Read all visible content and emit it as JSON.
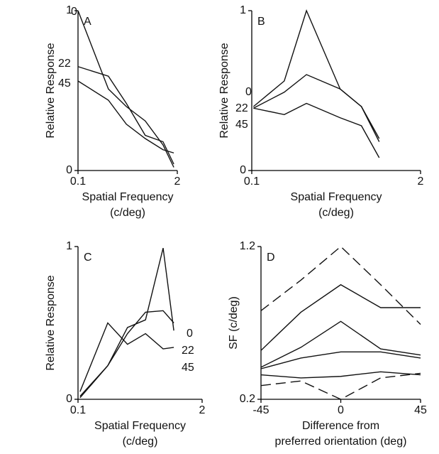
{
  "chart_data": [
    {
      "type": "line",
      "label": "A",
      "xscale": "log",
      "xlim": [
        0.1,
        2
      ],
      "xticks": [
        0.1,
        2
      ],
      "ylim": [
        0,
        1
      ],
      "yticks": [
        0,
        1
      ],
      "ylabel": "Relative Response",
      "xlabel": [
        "Spatial Frequency",
        "(c/deg)"
      ],
      "x": [
        0.1,
        0.25,
        0.43,
        0.76,
        1.3,
        1.8
      ],
      "series": [
        {
          "name": "0",
          "color": "#111111",
          "values": [
            1.0,
            0.51,
            0.4,
            0.31,
            0.16,
            0.02
          ]
        },
        {
          "name": "22",
          "color": "#111111",
          "values": [
            0.65,
            0.59,
            0.42,
            0.22,
            0.18,
            0.04
          ]
        },
        {
          "name": "45",
          "color": "#111111",
          "values": [
            0.56,
            0.44,
            0.29,
            0.2,
            0.13,
            0.11
          ]
        }
      ]
    },
    {
      "type": "line",
      "label": "B",
      "xscale": "log",
      "xlim": [
        0.1,
        2
      ],
      "xticks": [
        0.1,
        2
      ],
      "ylim": [
        0,
        1
      ],
      "yticks": [
        0,
        1
      ],
      "ylabel": "Relative Response",
      "xlabel": [
        "Spatial Frequency",
        "(c/deg)"
      ],
      "x": [
        0.103,
        0.178,
        0.264,
        0.48,
        0.7,
        0.96
      ],
      "series": [
        {
          "name": "0",
          "color": "#111111",
          "values": [
            0.4,
            0.56,
            1.0,
            0.51,
            0.4,
            0.2
          ]
        },
        {
          "name": "22",
          "color": "#111111",
          "values": [
            0.39,
            0.49,
            0.6,
            0.51,
            0.4,
            0.18
          ]
        },
        {
          "name": "45",
          "color": "#111111",
          "values": [
            0.39,
            0.35,
            0.42,
            0.33,
            0.28,
            0.08
          ]
        }
      ]
    },
    {
      "type": "line",
      "label": "C",
      "xscale": "log",
      "xlim": [
        0.1,
        2
      ],
      "xticks": [
        0.1,
        2
      ],
      "ylim": [
        0,
        1
      ],
      "yticks": [
        0,
        1
      ],
      "ylabel": "Relative Response",
      "xlabel": [
        "Spatial Frequency",
        "(c/deg)"
      ],
      "x": [
        0.105,
        0.205,
        0.33,
        0.51,
        0.78,
        1.01
      ],
      "series": [
        {
          "name": "0",
          "color": "#111111",
          "values": [
            0.01,
            0.22,
            0.47,
            0.52,
            0.99,
            0.45
          ]
        },
        {
          "name": "22",
          "color": "#111111",
          "values": [
            0.02,
            0.22,
            0.43,
            0.57,
            0.58,
            0.5
          ]
        },
        {
          "name": "45",
          "color": "#111111",
          "values": [
            0.05,
            0.5,
            0.36,
            0.43,
            0.33,
            0.34
          ]
        }
      ]
    },
    {
      "type": "line",
      "label": "D",
      "xlim": [
        -45,
        45
      ],
      "xticks": [
        -45,
        0,
        45
      ],
      "ylim": [
        0.2,
        1.2
      ],
      "yticks": [
        0.2,
        1.2
      ],
      "ylabel": "SF (c/deg)",
      "xlabel": [
        "Difference from",
        "preferred orientation (deg)"
      ],
      "x": [
        -45,
        -22.5,
        0,
        22.5,
        45
      ],
      "series": [
        {
          "color": "#111111",
          "linestyle": "dashed",
          "values": [
            0.78,
            0.98,
            1.2,
            0.95,
            0.69
          ]
        },
        {
          "color": "#111111",
          "linestyle": "solid",
          "values": [
            0.52,
            0.77,
            0.95,
            0.8,
            0.8
          ]
        },
        {
          "color": "#111111",
          "linestyle": "solid",
          "values": [
            0.41,
            0.54,
            0.71,
            0.53,
            0.49
          ]
        },
        {
          "color": "#111111",
          "linestyle": "solid",
          "values": [
            0.4,
            0.47,
            0.51,
            0.51,
            0.47
          ]
        },
        {
          "color": "#111111",
          "linestyle": "solid",
          "values": [
            0.36,
            0.34,
            0.35,
            0.38,
            0.36
          ]
        },
        {
          "color": "#111111",
          "linestyle": "dashed",
          "values": [
            0.29,
            0.32,
            0.2,
            0.34,
            0.37
          ]
        }
      ]
    }
  ]
}
